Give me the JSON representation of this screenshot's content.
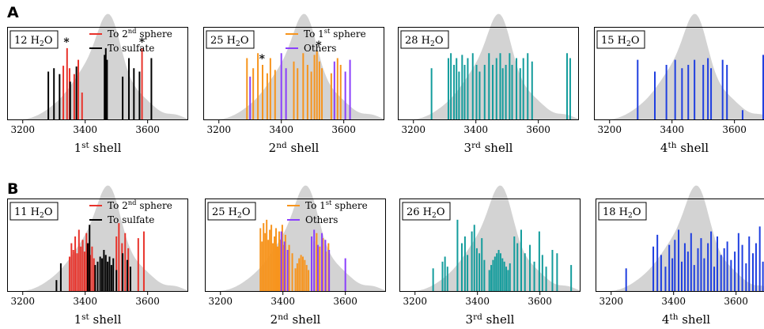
{
  "figure": {
    "row_labels": [
      "A",
      "B"
    ]
  },
  "chart_data": [
    {
      "type": "bar",
      "row": "A",
      "tag": "12 H2O",
      "xlabel": "1st shell",
      "xticks": [
        "3200",
        "3400",
        "3600"
      ],
      "xlim": [
        3150,
        3730
      ],
      "legend": [
        "To 2nd sphere",
        "To sulfate"
      ],
      "series": [
        {
          "name": "To 2nd sphere",
          "color": "#e8332b",
          "x": [
            3330,
            3342,
            3350,
            3365,
            3378,
            3390,
            3582
          ],
          "values": [
            0.65,
            0.86,
            0.62,
            0.55,
            0.72,
            0.33,
            0.86
          ]
        },
        {
          "name": "To sulfate",
          "color": "#000000",
          "x": [
            3282,
            3300,
            3318,
            3352,
            3372,
            3462,
            3466,
            3470,
            3520,
            3540,
            3556,
            3574,
            3612
          ],
          "values": [
            0.58,
            0.62,
            0.55,
            0.46,
            0.64,
            0.78,
            0.86,
            0.72,
            0.52,
            0.74,
            0.62,
            0.58,
            0.74
          ]
        }
      ],
      "stars_at": [
        3340,
        3582
      ]
    },
    {
      "type": "bar",
      "row": "A",
      "tag": "25 H2O",
      "xlabel": "2nd shell",
      "xticks": [
        "3200",
        "3400",
        "3600"
      ],
      "xlim": [
        3150,
        3730
      ],
      "legend": [
        "To 1st sphere",
        "Others"
      ],
      "series": [
        {
          "name": "To 1st sphere",
          "color": "#f7941d",
          "x": [
            3290,
            3310,
            3325,
            3340,
            3355,
            3365,
            3380,
            3440,
            3452,
            3470,
            3484,
            3496,
            3506,
            3514,
            3522,
            3530,
            3560,
            3580,
            3590
          ],
          "values": [
            0.74,
            0.62,
            0.8,
            0.66,
            0.56,
            0.74,
            0.6,
            0.7,
            0.62,
            0.8,
            0.66,
            0.58,
            0.78,
            0.82,
            0.7,
            0.62,
            0.56,
            0.74,
            0.66
          ]
        },
        {
          "name": "Others",
          "color": "#8a3ffc",
          "x": [
            3300,
            3400,
            3415,
            3570,
            3605,
            3620
          ],
          "values": [
            0.52,
            0.8,
            0.62,
            0.7,
            0.58,
            0.72
          ]
        }
      ],
      "stars_at": [
        3338,
        3520
      ]
    },
    {
      "type": "bar",
      "row": "A",
      "tag": "28 H2O",
      "xlabel": "3rd shell",
      "xticks": [
        "3200",
        "3400",
        "3600"
      ],
      "xlim": [
        3150,
        3730
      ],
      "series": [
        {
          "name": "",
          "color": "#139c9c",
          "x": [
            3258,
            3312,
            3320,
            3330,
            3338,
            3346,
            3356,
            3364,
            3374,
            3390,
            3402,
            3412,
            3428,
            3442,
            3454,
            3466,
            3478,
            3486,
            3496,
            3508,
            3516,
            3530,
            3542,
            3552,
            3566,
            3580,
            3692,
            3702
          ],
          "values": [
            0.62,
            0.74,
            0.8,
            0.66,
            0.74,
            0.58,
            0.78,
            0.66,
            0.74,
            0.8,
            0.66,
            0.58,
            0.66,
            0.8,
            0.66,
            0.74,
            0.8,
            0.62,
            0.66,
            0.8,
            0.66,
            0.74,
            0.62,
            0.74,
            0.8,
            0.7,
            0.8,
            0.74
          ]
        }
      ]
    },
    {
      "type": "bar",
      "row": "A",
      "tag": "15 H2O",
      "xlabel": "4th shell",
      "xticks": [
        "3200",
        "3400",
        "3600"
      ],
      "xlim": [
        3150,
        3730
      ],
      "series": [
        {
          "name": "",
          "color": "#1f3fe0",
          "x": [
            3290,
            3345,
            3382,
            3410,
            3432,
            3452,
            3472,
            3500,
            3515,
            3525,
            3562,
            3576,
            3626,
            3692,
            3702
          ],
          "values": [
            0.72,
            0.58,
            0.66,
            0.72,
            0.62,
            0.66,
            0.72,
            0.66,
            0.74,
            0.62,
            0.72,
            0.66,
            0.12,
            0.78,
            0.7
          ]
        }
      ]
    },
    {
      "type": "bar",
      "row": "B",
      "tag": "11 H2O",
      "xlabel": "1st shell",
      "xticks": [
        "3200",
        "3400",
        "3600"
      ],
      "xlim": [
        3150,
        3730
      ],
      "legend": [
        "To 2nd sphere",
        "To sulfate"
      ],
      "series": [
        {
          "name": "To 2nd sphere",
          "color": "#e8332b",
          "x": [
            3350,
            3356,
            3362,
            3368,
            3374,
            3380,
            3386,
            3392,
            3398,
            3404,
            3410,
            3416,
            3422,
            3428,
            3500,
            3508,
            3518,
            3528,
            3538,
            3570,
            3588
          ],
          "values": [
            0.42,
            0.58,
            0.5,
            0.66,
            0.46,
            0.74,
            0.54,
            0.62,
            0.48,
            0.7,
            0.58,
            0.44,
            0.54,
            0.4,
            0.66,
            0.82,
            0.58,
            0.7,
            0.52,
            0.64,
            0.72
          ]
        },
        {
          "name": "To sulfate",
          "color": "#000000",
          "x": [
            3308,
            3322,
            3408,
            3414,
            3432,
            3440,
            3448,
            3454,
            3460,
            3466,
            3472,
            3478,
            3484,
            3490,
            3500,
            3520,
            3535,
            3545
          ],
          "values": [
            0.14,
            0.34,
            0.58,
            0.8,
            0.32,
            0.36,
            0.42,
            0.4,
            0.5,
            0.44,
            0.36,
            0.42,
            0.32,
            0.4,
            0.26,
            0.46,
            0.38,
            0.3
          ]
        }
      ]
    },
    {
      "type": "bar",
      "row": "B",
      "tag": "25 H2O",
      "xlabel": "2nd shell",
      "xticks": [
        "3200",
        "3400",
        "3600"
      ],
      "xlim": [
        3150,
        3730
      ],
      "legend": [
        "To 1st sphere",
        "Others"
      ],
      "series": [
        {
          "name": "To 1st sphere",
          "color": "#f7941d",
          "x": [
            3328,
            3333,
            3338,
            3343,
            3348,
            3353,
            3358,
            3363,
            3368,
            3373,
            3378,
            3383,
            3388,
            3393,
            3398,
            3403,
            3408,
            3420,
            3430,
            3440,
            3446,
            3452,
            3458,
            3464,
            3470,
            3476,
            3482,
            3500,
            3508,
            3518,
            3528,
            3538,
            3546
          ],
          "values": [
            0.76,
            0.6,
            0.82,
            0.7,
            0.86,
            0.62,
            0.74,
            0.8,
            0.58,
            0.66,
            0.76,
            0.54,
            0.72,
            0.62,
            0.8,
            0.56,
            0.68,
            0.56,
            0.46,
            0.28,
            0.34,
            0.4,
            0.44,
            0.42,
            0.38,
            0.32,
            0.26,
            0.6,
            0.7,
            0.54,
            0.64,
            0.48,
            0.58
          ]
        },
        {
          "name": "Others",
          "color": "#8a3ffc",
          "x": [
            3395,
            3405,
            3415,
            3492,
            3500,
            3512,
            3525,
            3536,
            3548,
            3600
          ],
          "values": [
            0.72,
            0.6,
            0.5,
            0.66,
            0.74,
            0.56,
            0.7,
            0.62,
            0.5,
            0.4
          ]
        }
      ]
    },
    {
      "type": "bar",
      "row": "B",
      "tag": "26 H2O",
      "xlabel": "3rd shell",
      "xticks": [
        "3200",
        "3400",
        "3600"
      ],
      "xlim": [
        3150,
        3730
      ],
      "series": [
        {
          "name": "",
          "color": "#139c9c",
          "x": [
            3258,
            3288,
            3296,
            3304,
            3336,
            3350,
            3360,
            3368,
            3382,
            3390,
            3398,
            3406,
            3414,
            3422,
            3438,
            3444,
            3450,
            3456,
            3462,
            3468,
            3474,
            3480,
            3486,
            3492,
            3498,
            3504,
            3518,
            3528,
            3540,
            3552,
            3568,
            3582,
            3598,
            3608,
            3620,
            3640,
            3655,
            3700
          ],
          "values": [
            0.28,
            0.36,
            0.42,
            0.3,
            0.86,
            0.58,
            0.66,
            0.44,
            0.72,
            0.8,
            0.52,
            0.46,
            0.64,
            0.38,
            0.26,
            0.32,
            0.38,
            0.42,
            0.46,
            0.5,
            0.46,
            0.4,
            0.36,
            0.3,
            0.26,
            0.34,
            0.66,
            0.58,
            0.74,
            0.46,
            0.56,
            0.36,
            0.72,
            0.44,
            0.3,
            0.5,
            0.46,
            0.32
          ]
        }
      ]
    },
    {
      "type": "bar",
      "row": "B",
      "tag": "18 H2O",
      "xlabel": "4th shell",
      "xticks": [
        "3200",
        "3400",
        "3600"
      ],
      "xlim": [
        3150,
        3730
      ],
      "series": [
        {
          "name": "",
          "color": "#1f3fe0",
          "x": [
            3248,
            3335,
            3348,
            3360,
            3374,
            3386,
            3396,
            3404,
            3416,
            3426,
            3436,
            3446,
            3456,
            3466,
            3478,
            3488,
            3498,
            3510,
            3520,
            3530,
            3540,
            3552,
            3562,
            3572,
            3584,
            3596,
            3608,
            3620,
            3632,
            3642,
            3654,
            3664,
            3676,
            3686,
            3698,
            3712
          ],
          "values": [
            0.28,
            0.54,
            0.68,
            0.44,
            0.3,
            0.56,
            0.4,
            0.62,
            0.74,
            0.36,
            0.58,
            0.48,
            0.7,
            0.32,
            0.52,
            0.64,
            0.4,
            0.58,
            0.72,
            0.3,
            0.66,
            0.44,
            0.52,
            0.6,
            0.38,
            0.48,
            0.7,
            0.56,
            0.34,
            0.66,
            0.46,
            0.58,
            0.78,
            0.36,
            0.6,
            0.54
          ]
        }
      ]
    }
  ]
}
